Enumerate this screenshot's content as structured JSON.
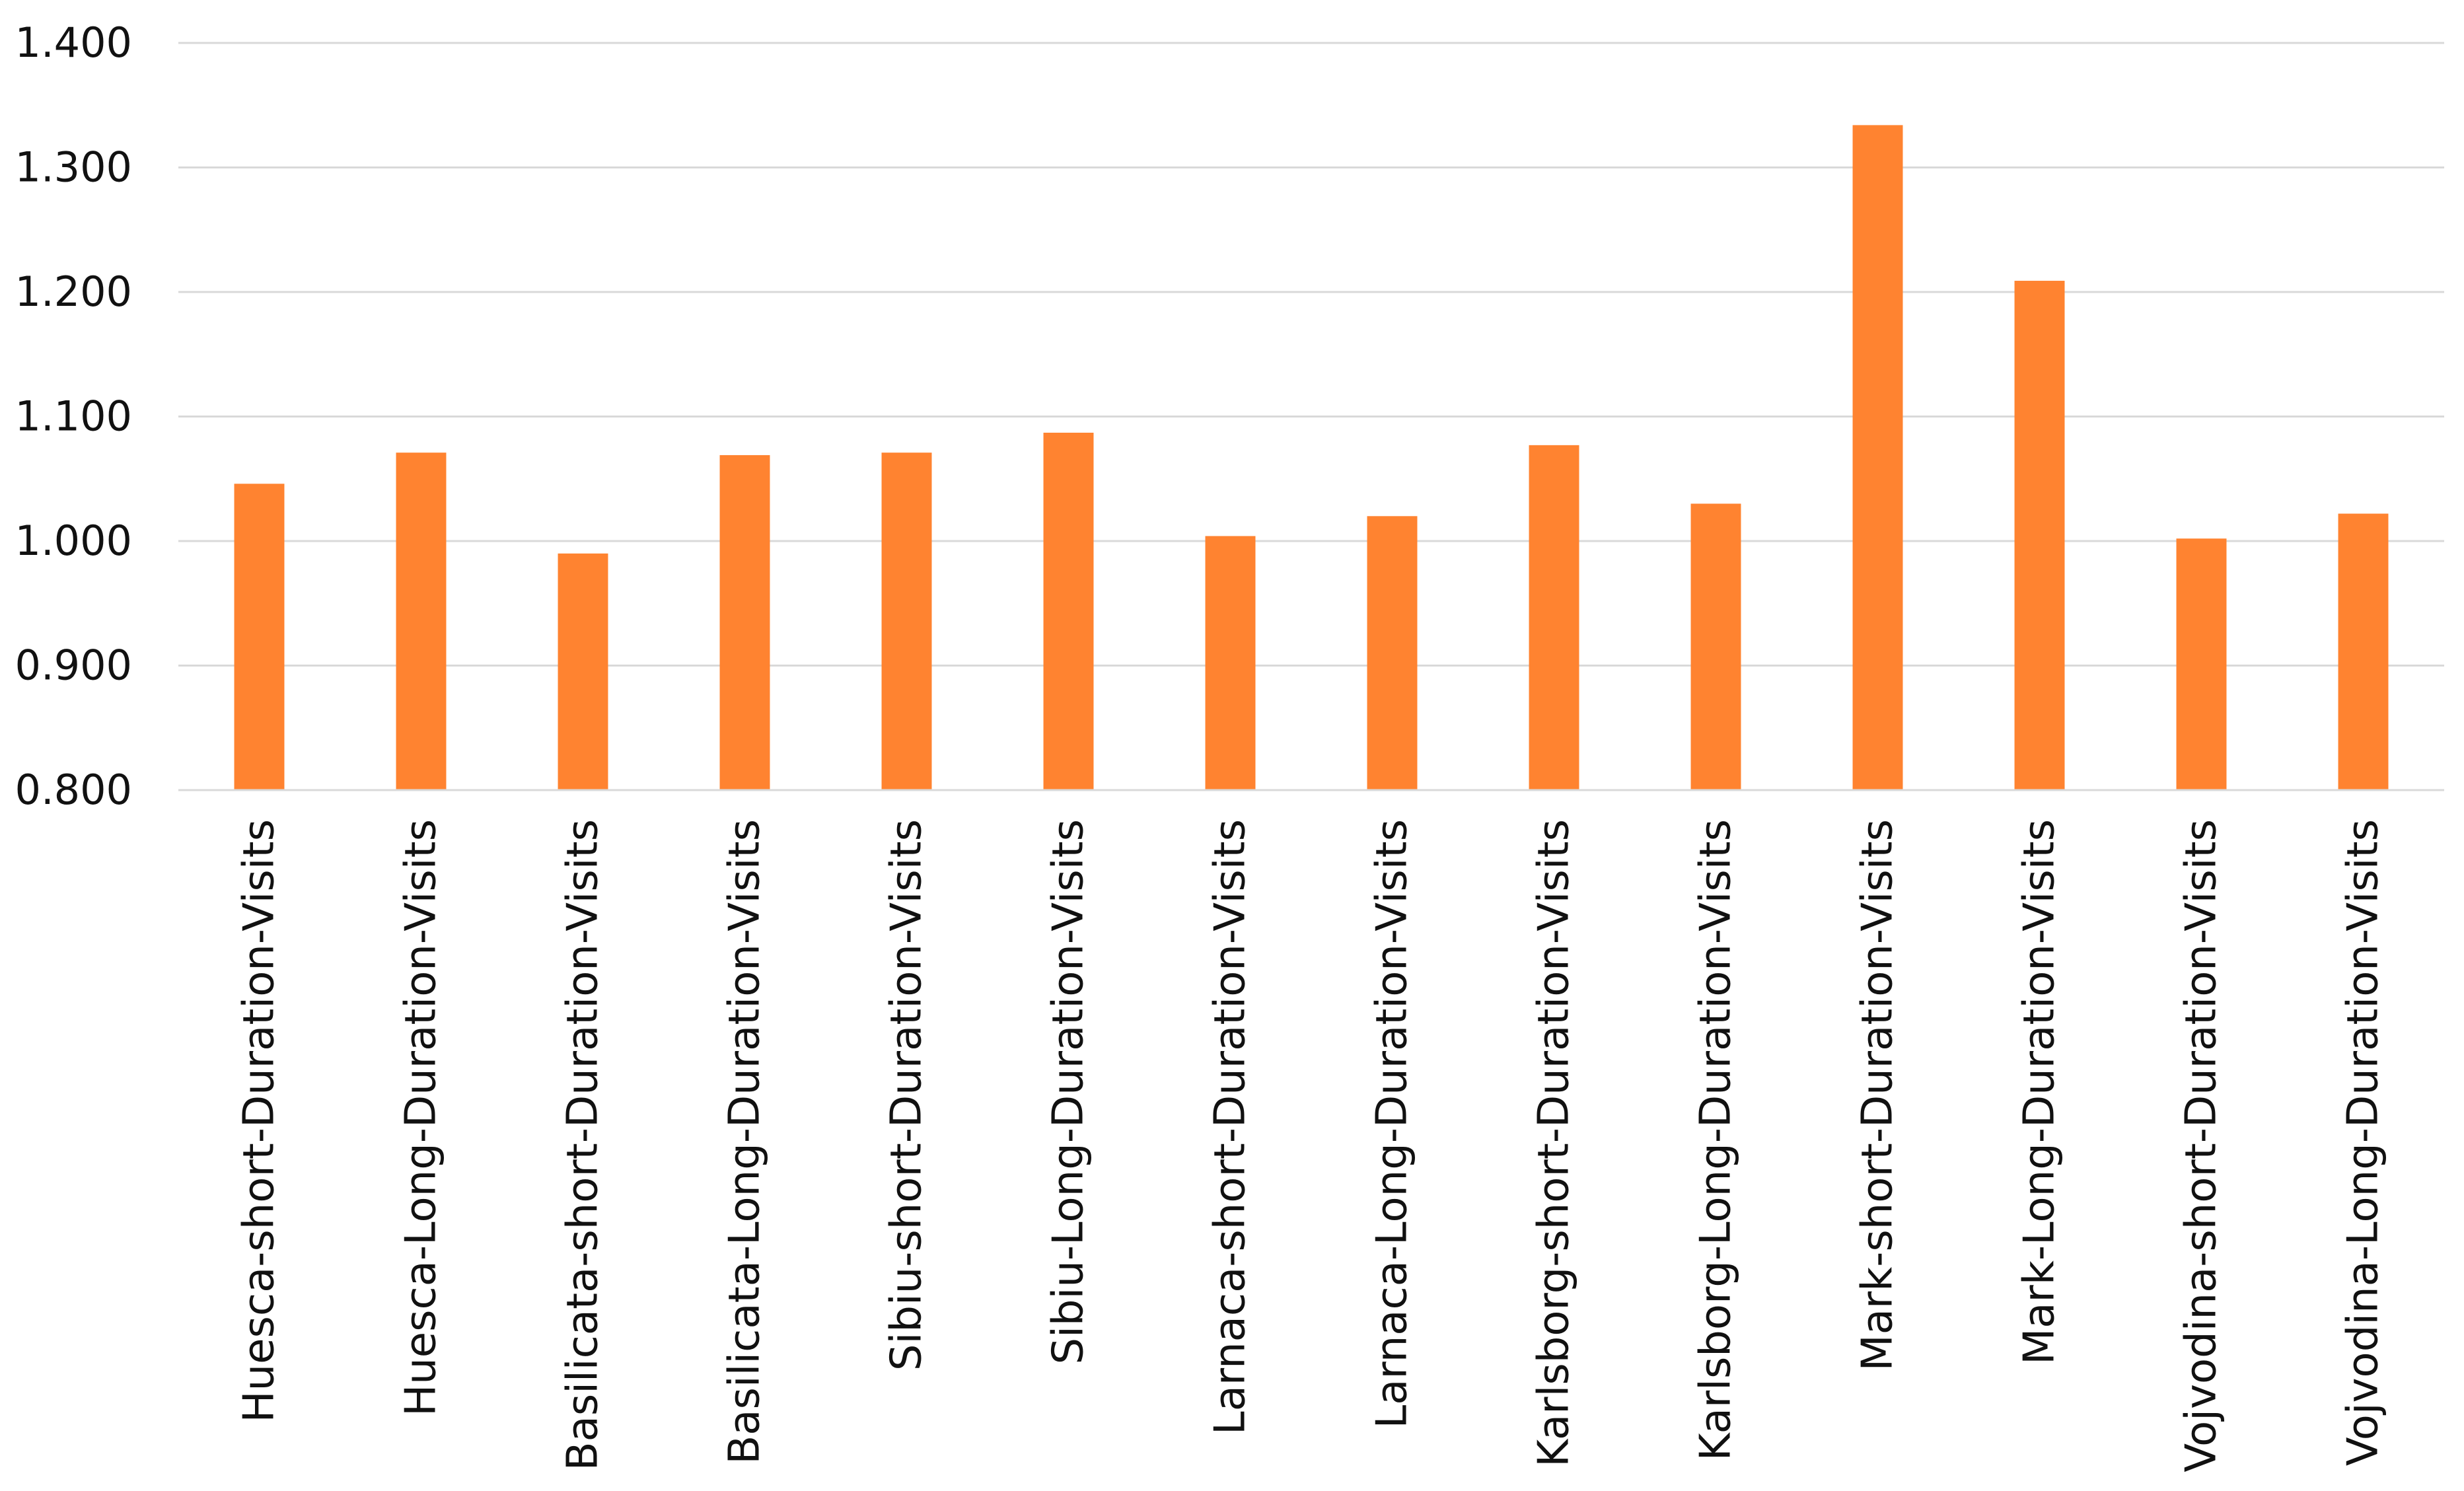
{
  "chart_data": {
    "type": "bar",
    "title": "",
    "xlabel": "",
    "ylabel": "",
    "ylim": [
      0.8,
      1.4
    ],
    "yticks": [
      "0.800",
      "0.900",
      "1.000",
      "1.100",
      "1.200",
      "1.300",
      "1.400"
    ],
    "grid": true,
    "legend": "none",
    "bar_color": "#FF8330",
    "categories": [
      "Huesca-short-Duration-Visits",
      "Huesca-Long-Duration-Visits",
      "Basilicata-short-Duration-Visits",
      "Basilicata-Long-Duration-Visits",
      "Sibiu-short-Duration-Visits",
      "Sibiu-Long-Duration-Visits",
      "Larnaca-short-Duration-Visits",
      "Larnaca-Long-Duration-Visits",
      "Karlsborg-short-Duration-Visits",
      "Karlsborg-Long-Duration-Visits",
      "Mark-short-Duration-Visits",
      "Mark-Long-Duration-Visits",
      "Vojvodina-short-Duration-Visits",
      "Vojvodina-Long-Duration-Visits"
    ],
    "values": [
      1.046,
      1.071,
      0.99,
      1.069,
      1.071,
      1.087,
      1.004,
      1.02,
      1.077,
      1.03,
      1.334,
      1.209,
      1.002,
      1.022
    ]
  }
}
